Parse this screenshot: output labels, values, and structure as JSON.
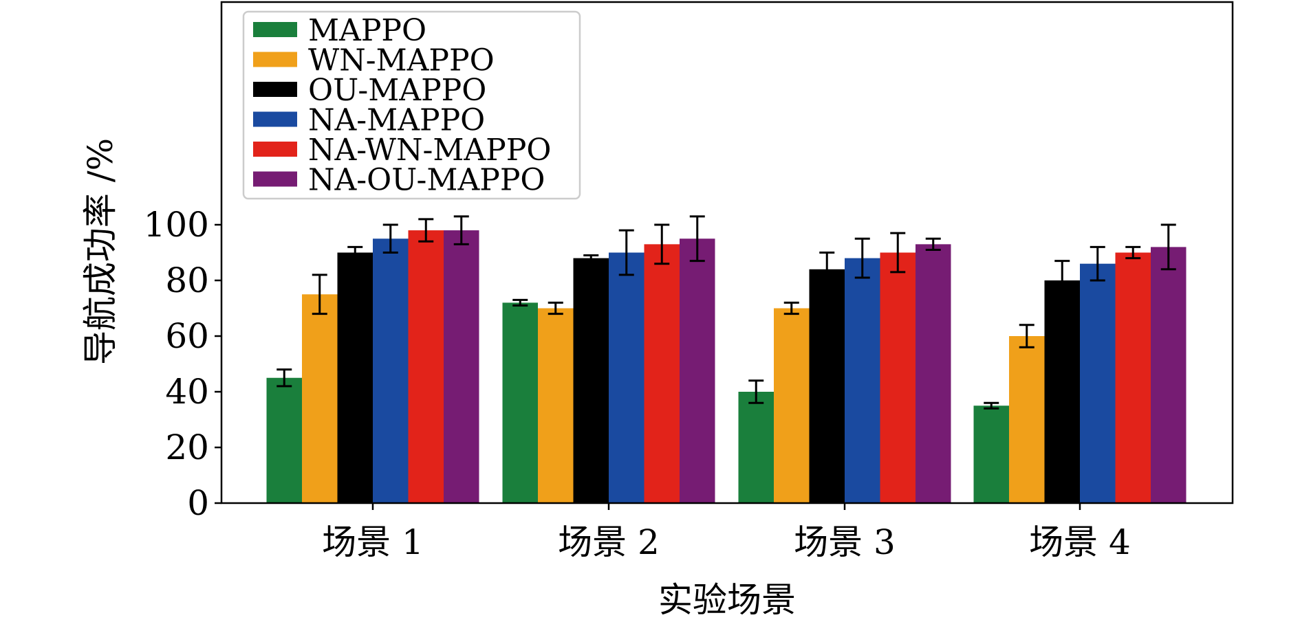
{
  "chart_data": {
    "type": "bar",
    "title": "",
    "xlabel": "实验场景",
    "ylabel": "导航成功率 /%",
    "categories": [
      "场景 1",
      "场景 2",
      "场景 3",
      "场景 4"
    ],
    "ylim": [
      0,
      180
    ],
    "yticks": [
      0,
      20,
      40,
      60,
      80,
      100
    ],
    "grid": false,
    "legend_position": "top-left",
    "series": [
      {
        "name": "MAPPO",
        "color": "#1a7f3c",
        "values": [
          45,
          72,
          40,
          35
        ],
        "errors": [
          3,
          1,
          4,
          1
        ]
      },
      {
        "name": "WN-MAPPO",
        "color": "#f0a01a",
        "values": [
          75,
          70,
          70,
          60
        ],
        "errors": [
          7,
          2,
          2,
          4
        ]
      },
      {
        "name": "OU-MAPPO",
        "color": "#000000",
        "values": [
          90,
          88,
          84,
          80
        ],
        "errors": [
          2,
          1,
          6,
          7
        ]
      },
      {
        "name": "NA-MAPPO",
        "color": "#1a4aa0",
        "values": [
          95,
          90,
          88,
          86
        ],
        "errors": [
          5,
          8,
          7,
          6
        ]
      },
      {
        "name": "NA-WN-MAPPO",
        "color": "#e2231a",
        "values": [
          98,
          93,
          90,
          90
        ],
        "errors": [
          4,
          7,
          7,
          2
        ]
      },
      {
        "name": "NA-OU-MAPPO",
        "color": "#761c73",
        "values": [
          98,
          95,
          93,
          92
        ],
        "errors": [
          5,
          8,
          2,
          8
        ]
      }
    ]
  }
}
